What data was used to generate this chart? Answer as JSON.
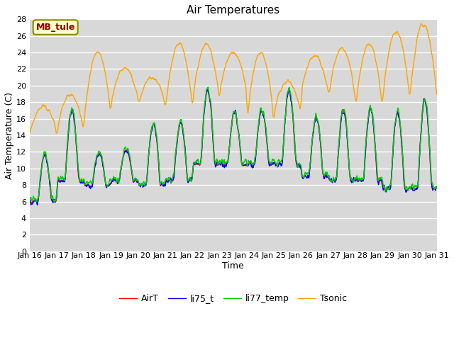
{
  "title": "Air Temperatures",
  "xlabel": "Time",
  "ylabel": "Air Temperature (C)",
  "ylim": [
    0,
    28
  ],
  "yticks": [
    0,
    2,
    4,
    6,
    8,
    10,
    12,
    14,
    16,
    18,
    20,
    22,
    24,
    26,
    28
  ],
  "legend_labels": [
    "AirT",
    "li75_t",
    "li77_temp",
    "Tsonic"
  ],
  "legend_colors": [
    "#ff0000",
    "#0000ff",
    "#00cc00",
    "#ffa500"
  ],
  "annotation_text": "MB_tule",
  "annotation_color": "#8b0000",
  "annotation_bg": "#ffffcc",
  "annotation_edge": "#8b8b00",
  "line_width": 1.0,
  "x_tick_labels": [
    "Jan 16",
    "Jan 17",
    "Jan 18",
    "Jan 19",
    "Jan 20",
    "Jan 21",
    "Jan 22",
    "Jan 23",
    "Jan 24",
    "Jan 25",
    "Jan 26",
    "Jan 27",
    "Jan 28",
    "Jan 29",
    "Jan 30",
    "Jan 31"
  ],
  "bg_color": "#d8d8d8",
  "grid_color": "#ffffff",
  "title_fontsize": 11,
  "tick_fontsize": 8,
  "label_fontsize": 9
}
